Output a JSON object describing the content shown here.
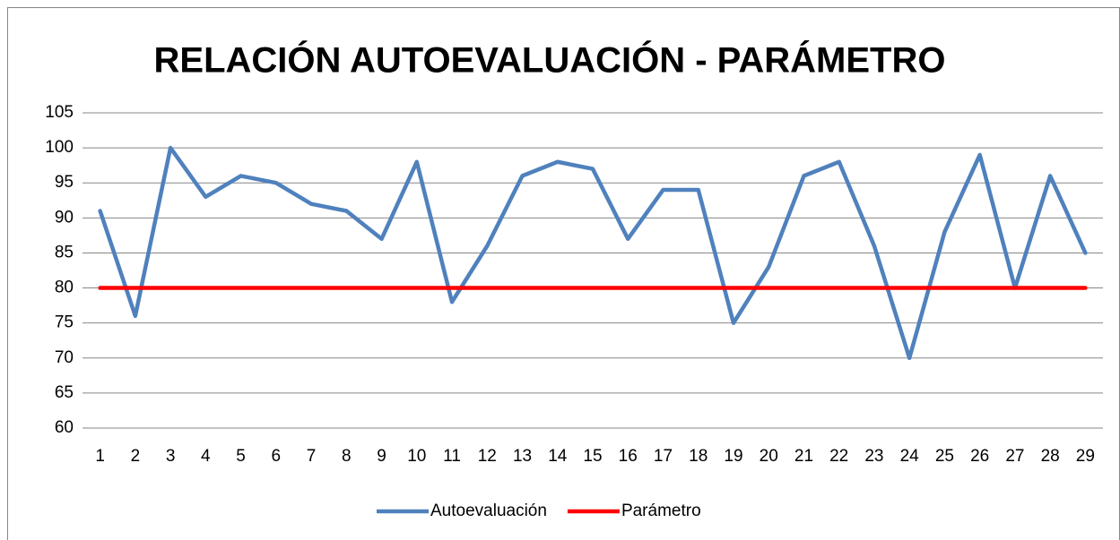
{
  "chart_data": {
    "type": "line",
    "title": "RELACIÓN AUTOEVALUACIÓN - PARÁMETRO",
    "categories": [
      "1",
      "2",
      "3",
      "4",
      "5",
      "6",
      "7",
      "8",
      "9",
      "10",
      "11",
      "12",
      "13",
      "14",
      "15",
      "16",
      "17",
      "18",
      "19",
      "20",
      "21",
      "22",
      "23",
      "24",
      "25",
      "26",
      "27",
      "28",
      "29"
    ],
    "series": [
      {
        "name": "Autoevaluación",
        "color": "#4f81bd",
        "values": [
          91,
          76,
          100,
          93,
          96,
          95,
          92,
          91,
          87,
          98,
          78,
          86,
          96,
          98,
          97,
          87,
          94,
          94,
          75,
          83,
          96,
          98,
          86,
          70,
          88,
          99,
          80,
          96,
          85
        ]
      },
      {
        "name": "Parámetro",
        "color": "#ff0000",
        "values": [
          80,
          80,
          80,
          80,
          80,
          80,
          80,
          80,
          80,
          80,
          80,
          80,
          80,
          80,
          80,
          80,
          80,
          80,
          80,
          80,
          80,
          80,
          80,
          80,
          80,
          80,
          80,
          80,
          80
        ]
      }
    ],
    "ylim": [
      60,
      105
    ],
    "yticks": [
      60,
      65,
      70,
      75,
      80,
      85,
      90,
      95,
      100,
      105
    ],
    "grid": true,
    "legend": "bottom"
  }
}
